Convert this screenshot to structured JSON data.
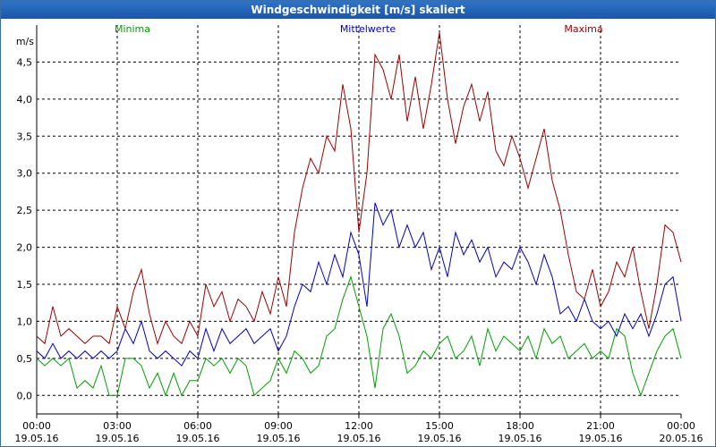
{
  "window": {
    "title": "Windgeschwindigkeit [m/s] skaliert"
  },
  "chart_data": {
    "type": "line",
    "title": "Windgeschwindigkeit [m/s] skaliert",
    "ylabel": "m/s",
    "ylim": [
      -0.25,
      5.0
    ],
    "xlim_hours": [
      0,
      24
    ],
    "yticks": [
      {
        "v": 0.0,
        "label": "0,0"
      },
      {
        "v": 0.5,
        "label": "0,5"
      },
      {
        "v": 1.0,
        "label": "1,0"
      },
      {
        "v": 1.5,
        "label": "1,5"
      },
      {
        "v": 2.0,
        "label": "2,0"
      },
      {
        "v": 2.5,
        "label": "2,5"
      },
      {
        "v": 3.0,
        "label": "3,0"
      },
      {
        "v": 3.5,
        "label": "3,5"
      },
      {
        "v": 4.0,
        "label": "4,0"
      },
      {
        "v": 4.5,
        "label": "4,5"
      }
    ],
    "xticks": [
      {
        "h": 0,
        "time": "00:00",
        "date": "19.05.16"
      },
      {
        "h": 3,
        "time": "03:00",
        "date": "19.05.16"
      },
      {
        "h": 6,
        "time": "06:00",
        "date": "19.05.16"
      },
      {
        "h": 9,
        "time": "09:00",
        "date": "19.05.16"
      },
      {
        "h": 12,
        "time": "12:00",
        "date": "19.05.16"
      },
      {
        "h": 15,
        "time": "15:00",
        "date": "19.05.16"
      },
      {
        "h": 18,
        "time": "18:00",
        "date": "19.05.16"
      },
      {
        "h": 21,
        "time": "21:00",
        "date": "19.05.16"
      },
      {
        "h": 24,
        "time": "00:00",
        "date": "20.05.16"
      }
    ],
    "grid": true,
    "legend_placement": "top",
    "series": [
      {
        "name": "Minima",
        "color": "#00a000",
        "points": [
          [
            0,
            0.5
          ],
          [
            0.3,
            0.4
          ],
          [
            0.6,
            0.5
          ],
          [
            0.9,
            0.4
          ],
          [
            1.2,
            0.5
          ],
          [
            1.5,
            0.1
          ],
          [
            1.8,
            0.2
          ],
          [
            2.1,
            0.1
          ],
          [
            2.4,
            0.4
          ],
          [
            2.7,
            0.0
          ],
          [
            3.0,
            0.0
          ],
          [
            3.3,
            0.5
          ],
          [
            3.6,
            0.5
          ],
          [
            3.9,
            0.4
          ],
          [
            4.2,
            0.1
          ],
          [
            4.5,
            0.3
          ],
          [
            4.8,
            0.0
          ],
          [
            5.1,
            0.3
          ],
          [
            5.4,
            0.0
          ],
          [
            5.7,
            0.2
          ],
          [
            6.0,
            0.2
          ],
          [
            6.3,
            0.5
          ],
          [
            6.6,
            0.4
          ],
          [
            6.9,
            0.5
          ],
          [
            7.2,
            0.3
          ],
          [
            7.5,
            0.5
          ],
          [
            7.8,
            0.4
          ],
          [
            8.1,
            0.0
          ],
          [
            8.4,
            0.1
          ],
          [
            8.7,
            0.2
          ],
          [
            9.0,
            0.5
          ],
          [
            9.3,
            0.3
          ],
          [
            9.6,
            0.6
          ],
          [
            9.9,
            0.5
          ],
          [
            10.2,
            0.3
          ],
          [
            10.5,
            0.4
          ],
          [
            10.8,
            0.8
          ],
          [
            11.1,
            0.9
          ],
          [
            11.4,
            1.3
          ],
          [
            11.7,
            1.6
          ],
          [
            12.0,
            1.2
          ],
          [
            12.3,
            0.8
          ],
          [
            12.6,
            0.1
          ],
          [
            12.9,
            0.9
          ],
          [
            13.2,
            1.1
          ],
          [
            13.5,
            0.8
          ],
          [
            13.8,
            0.3
          ],
          [
            14.1,
            0.4
          ],
          [
            14.4,
            0.6
          ],
          [
            14.7,
            0.5
          ],
          [
            15.0,
            0.7
          ],
          [
            15.3,
            0.8
          ],
          [
            15.6,
            0.5
          ],
          [
            15.9,
            0.6
          ],
          [
            16.2,
            0.8
          ],
          [
            16.5,
            0.4
          ],
          [
            16.8,
            0.9
          ],
          [
            17.1,
            0.6
          ],
          [
            17.4,
            0.8
          ],
          [
            17.7,
            0.7
          ],
          [
            18.0,
            0.6
          ],
          [
            18.3,
            0.8
          ],
          [
            18.6,
            0.5
          ],
          [
            18.9,
            0.9
          ],
          [
            19.2,
            0.7
          ],
          [
            19.5,
            0.8
          ],
          [
            19.8,
            0.5
          ],
          [
            20.1,
            0.6
          ],
          [
            20.4,
            0.7
          ],
          [
            20.7,
            0.5
          ],
          [
            21.0,
            0.6
          ],
          [
            21.3,
            0.5
          ],
          [
            21.6,
            0.9
          ],
          [
            21.9,
            0.8
          ],
          [
            22.2,
            0.3
          ],
          [
            22.5,
            0.0
          ],
          [
            22.8,
            0.3
          ],
          [
            23.1,
            0.6
          ],
          [
            23.4,
            0.8
          ],
          [
            23.7,
            0.9
          ],
          [
            24.0,
            0.5
          ]
        ]
      },
      {
        "name": "Mittelwerte",
        "color": "#0000c8",
        "points": [
          [
            0,
            0.6
          ],
          [
            0.3,
            0.5
          ],
          [
            0.6,
            0.7
          ],
          [
            0.9,
            0.5
          ],
          [
            1.2,
            0.6
          ],
          [
            1.5,
            0.5
          ],
          [
            1.8,
            0.6
          ],
          [
            2.1,
            0.5
          ],
          [
            2.4,
            0.6
          ],
          [
            2.7,
            0.5
          ],
          [
            3.0,
            0.6
          ],
          [
            3.3,
            0.9
          ],
          [
            3.6,
            0.7
          ],
          [
            3.9,
            1.0
          ],
          [
            4.2,
            0.6
          ],
          [
            4.5,
            0.5
          ],
          [
            4.8,
            0.6
          ],
          [
            5.1,
            0.5
          ],
          [
            5.4,
            0.4
          ],
          [
            5.7,
            0.6
          ],
          [
            6.0,
            0.5
          ],
          [
            6.3,
            0.9
          ],
          [
            6.6,
            0.6
          ],
          [
            6.9,
            0.9
          ],
          [
            7.2,
            0.7
          ],
          [
            7.5,
            0.8
          ],
          [
            7.8,
            0.9
          ],
          [
            8.1,
            0.7
          ],
          [
            8.4,
            0.8
          ],
          [
            8.7,
            0.9
          ],
          [
            9.0,
            0.6
          ],
          [
            9.3,
            0.8
          ],
          [
            9.6,
            1.2
          ],
          [
            9.9,
            1.5
          ],
          [
            10.2,
            1.4
          ],
          [
            10.5,
            1.8
          ],
          [
            10.8,
            1.5
          ],
          [
            11.1,
            1.9
          ],
          [
            11.4,
            1.6
          ],
          [
            11.7,
            2.2
          ],
          [
            12.0,
            1.9
          ],
          [
            12.3,
            1.2
          ],
          [
            12.6,
            2.6
          ],
          [
            12.9,
            2.3
          ],
          [
            13.2,
            2.5
          ],
          [
            13.5,
            2.0
          ],
          [
            13.8,
            2.3
          ],
          [
            14.1,
            2.0
          ],
          [
            14.4,
            2.2
          ],
          [
            14.7,
            1.7
          ],
          [
            15.0,
            2.0
          ],
          [
            15.3,
            1.6
          ],
          [
            15.6,
            2.2
          ],
          [
            15.9,
            1.9
          ],
          [
            16.2,
            2.1
          ],
          [
            16.5,
            1.8
          ],
          [
            16.8,
            2.0
          ],
          [
            17.1,
            1.6
          ],
          [
            17.4,
            1.8
          ],
          [
            17.7,
            1.7
          ],
          [
            18.0,
            2.0
          ],
          [
            18.3,
            1.8
          ],
          [
            18.6,
            1.5
          ],
          [
            18.9,
            1.9
          ],
          [
            19.2,
            1.6
          ],
          [
            19.5,
            1.1
          ],
          [
            19.8,
            1.2
          ],
          [
            20.1,
            1.0
          ],
          [
            20.4,
            1.3
          ],
          [
            20.7,
            1.0
          ],
          [
            21.0,
            0.9
          ],
          [
            21.3,
            1.0
          ],
          [
            21.6,
            0.8
          ],
          [
            21.9,
            1.1
          ],
          [
            22.2,
            0.9
          ],
          [
            22.5,
            1.1
          ],
          [
            22.8,
            0.8
          ],
          [
            23.1,
            1.1
          ],
          [
            23.4,
            1.5
          ],
          [
            23.7,
            1.6
          ],
          [
            24.0,
            1.0
          ]
        ]
      },
      {
        "name": "Maxima",
        "color": "#a00000",
        "points": [
          [
            0,
            0.8
          ],
          [
            0.3,
            0.7
          ],
          [
            0.6,
            1.2
          ],
          [
            0.9,
            0.8
          ],
          [
            1.2,
            0.9
          ],
          [
            1.5,
            0.8
          ],
          [
            1.8,
            0.7
          ],
          [
            2.1,
            0.8
          ],
          [
            2.4,
            0.8
          ],
          [
            2.7,
            0.7
          ],
          [
            3.0,
            1.2
          ],
          [
            3.3,
            0.9
          ],
          [
            3.6,
            1.4
          ],
          [
            3.9,
            1.7
          ],
          [
            4.2,
            1.1
          ],
          [
            4.5,
            0.7
          ],
          [
            4.8,
            1.0
          ],
          [
            5.1,
            0.8
          ],
          [
            5.4,
            0.7
          ],
          [
            5.7,
            1.0
          ],
          [
            6.0,
            0.8
          ],
          [
            6.3,
            1.5
          ],
          [
            6.6,
            1.2
          ],
          [
            6.9,
            1.4
          ],
          [
            7.2,
            1.0
          ],
          [
            7.5,
            1.3
          ],
          [
            7.8,
            1.2
          ],
          [
            8.1,
            1.0
          ],
          [
            8.4,
            1.4
          ],
          [
            8.7,
            1.1
          ],
          [
            9.0,
            1.6
          ],
          [
            9.3,
            1.2
          ],
          [
            9.6,
            2.2
          ],
          [
            9.9,
            2.8
          ],
          [
            10.2,
            3.2
          ],
          [
            10.5,
            3.0
          ],
          [
            10.8,
            3.5
          ],
          [
            11.1,
            3.3
          ],
          [
            11.4,
            4.2
          ],
          [
            11.7,
            3.6
          ],
          [
            12.0,
            2.2
          ],
          [
            12.3,
            3.0
          ],
          [
            12.6,
            4.6
          ],
          [
            12.9,
            4.4
          ],
          [
            13.2,
            4.0
          ],
          [
            13.5,
            4.6
          ],
          [
            13.8,
            3.7
          ],
          [
            14.1,
            4.3
          ],
          [
            14.4,
            3.6
          ],
          [
            14.7,
            4.2
          ],
          [
            15.0,
            4.9
          ],
          [
            15.3,
            4.0
          ],
          [
            15.6,
            3.4
          ],
          [
            15.9,
            3.9
          ],
          [
            16.2,
            4.2
          ],
          [
            16.5,
            3.7
          ],
          [
            16.8,
            4.1
          ],
          [
            17.1,
            3.3
          ],
          [
            17.4,
            3.1
          ],
          [
            17.7,
            3.5
          ],
          [
            18.0,
            3.2
          ],
          [
            18.3,
            2.8
          ],
          [
            18.6,
            3.2
          ],
          [
            18.9,
            3.6
          ],
          [
            19.2,
            2.9
          ],
          [
            19.5,
            2.5
          ],
          [
            19.8,
            1.9
          ],
          [
            20.1,
            1.4
          ],
          [
            20.4,
            1.3
          ],
          [
            20.7,
            1.7
          ],
          [
            21.0,
            1.2
          ],
          [
            21.3,
            1.4
          ],
          [
            21.6,
            1.8
          ],
          [
            21.9,
            1.6
          ],
          [
            22.2,
            2.0
          ],
          [
            22.5,
            1.4
          ],
          [
            22.8,
            0.9
          ],
          [
            23.1,
            1.5
          ],
          [
            23.4,
            2.3
          ],
          [
            23.7,
            2.2
          ],
          [
            24.0,
            1.8
          ]
        ]
      }
    ]
  }
}
